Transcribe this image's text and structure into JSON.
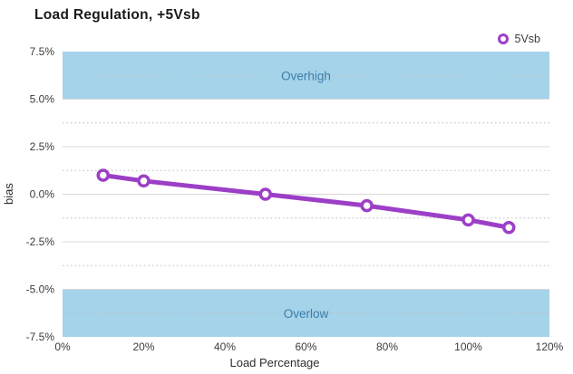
{
  "chart_data": {
    "type": "line",
    "title": "Load Regulation, +5Vsb",
    "xlabel": "Load Percentage",
    "ylabel": "bias",
    "xlim": [
      0,
      120
    ],
    "ylim": [
      -7.5,
      7.5
    ],
    "grid": "on",
    "legend_position": "top-right",
    "x_ticks": [
      {
        "value": 0,
        "label": "0%"
      },
      {
        "value": 20,
        "label": "20%"
      },
      {
        "value": 40,
        "label": "40%"
      },
      {
        "value": 60,
        "label": "60%"
      },
      {
        "value": 80,
        "label": "80%"
      },
      {
        "value": 100,
        "label": "100%"
      },
      {
        "value": 120,
        "label": "120%"
      }
    ],
    "y_ticks": [
      {
        "value": 7.5,
        "label": "7.5%"
      },
      {
        "value": 5.0,
        "label": "5.0%"
      },
      {
        "value": 2.5,
        "label": "2.5%"
      },
      {
        "value": 0.0,
        "label": "0.0%"
      },
      {
        "value": -2.5,
        "label": "-2.5%"
      },
      {
        "value": -5.0,
        "label": "-5.0%"
      },
      {
        "value": -7.5,
        "label": "-7.5%"
      }
    ],
    "y_minor_grid": [
      6.25,
      3.75,
      1.25,
      -1.25,
      -3.75,
      -6.25
    ],
    "bands": [
      {
        "label": "Overhigh",
        "from": 5.0,
        "to": 7.5
      },
      {
        "label": "Overlow",
        "from": -7.5,
        "to": -5.0
      }
    ],
    "series": [
      {
        "name": "5Vsb",
        "marker": "ring-icon",
        "x": [
          10,
          20,
          50,
          75,
          100,
          110
        ],
        "y": [
          1.0,
          0.7,
          0.0,
          -0.6,
          -1.35,
          -1.75
        ]
      }
    ],
    "colors": {
      "series": "#9c3fc7",
      "marker_fill": "#ffffff",
      "band_fill": "#a5d3ea",
      "band_text": "#3a7fa8",
      "grid_major": "#d8d8d8",
      "grid_minor": "#bfbfbf",
      "title_text": "#1a1a1a",
      "tick_text": "#3c3c3c",
      "axis_label_text": "#2e2e2e",
      "background": "#ffffff"
    }
  }
}
